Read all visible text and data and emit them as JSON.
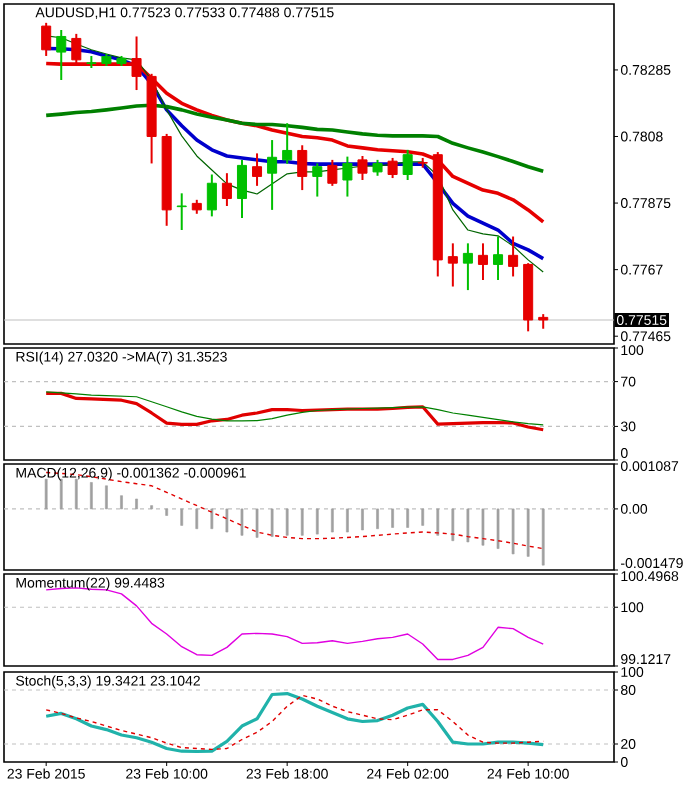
{
  "chart_data": [
    {
      "type": "candlestick",
      "title": "AUDUSD,H1 0.77523 0.77533 0.77488 0.77515",
      "categories": [
        null,
        null,
        null,
        null,
        null,
        null,
        null,
        null,
        null,
        null,
        null,
        null,
        null,
        null,
        null,
        null,
        null,
        null,
        null,
        null,
        null,
        null,
        null,
        null,
        null,
        null,
        null,
        null,
        null,
        null,
        null,
        null,
        null,
        null
      ],
      "tick_labels": "y",
      "ohlc": [
        [
          0.7842,
          0.7843,
          0.78328,
          0.78347
        ],
        [
          0.7834,
          0.78408,
          0.78254,
          0.78388
        ],
        [
          0.78382,
          0.78396,
          0.78297,
          0.78316
        ],
        [
          0.78305,
          0.78328,
          0.78291,
          0.78307
        ],
        [
          0.78305,
          0.78334,
          0.78297,
          0.78326
        ],
        [
          0.78305,
          0.78328,
          0.78297,
          0.7832
        ],
        [
          0.7832,
          0.78388,
          0.78223,
          0.78265
        ],
        [
          0.78265,
          0.78273,
          0.77997,
          0.7808
        ],
        [
          0.7808,
          0.78088,
          0.77805,
          0.77854
        ],
        [
          0.77864,
          0.77905,
          0.77792,
          0.77866
        ],
        [
          0.77874,
          0.77885,
          0.77842,
          0.77854
        ],
        [
          0.77854,
          0.77963,
          0.77834,
          0.77936
        ],
        [
          0.77936,
          0.77967,
          0.77866,
          0.77889
        ],
        [
          0.77889,
          0.78008,
          0.77829,
          0.77991
        ],
        [
          0.77987,
          0.78028,
          0.77928,
          0.77957
        ],
        [
          0.77967,
          0.78069,
          0.77854,
          0.78016
        ],
        [
          0.78008,
          0.78121,
          0.77996,
          0.78037
        ],
        [
          0.78037,
          0.78053,
          0.77915,
          0.77957
        ],
        [
          0.77957,
          0.77997,
          0.77895,
          0.77987
        ],
        [
          0.77991,
          0.78008,
          0.77928,
          0.77936
        ],
        [
          0.77946,
          0.78018,
          0.77895,
          0.77997
        ],
        [
          0.78008,
          0.7802,
          0.77946,
          0.77967
        ],
        [
          0.77971,
          0.78008,
          0.77959,
          0.77997
        ],
        [
          0.78004,
          0.78014,
          0.77952,
          0.77963
        ],
        [
          0.77963,
          0.78039,
          0.77946,
          0.78024
        ],
        [
          0.78,
          0.78014,
          0.77984,
          0.77998
        ],
        [
          0.78024,
          0.78032,
          0.77649,
          0.777
        ],
        [
          0.7771,
          0.77751,
          0.77618,
          0.7769
        ],
        [
          0.7769,
          0.77751,
          0.77607,
          0.7772
        ],
        [
          0.77714,
          0.77751,
          0.77638,
          0.77686
        ],
        [
          0.77686,
          0.77772,
          0.77638,
          0.77716
        ],
        [
          0.77714,
          0.77772,
          0.77649,
          0.7768
        ],
        [
          0.77686,
          0.7769,
          0.7748,
          0.77515
        ],
        [
          0.77523,
          0.77533,
          0.77488,
          0.77515
        ]
      ],
      "series": [
        {
          "type": "line",
          "color": "#0000cc",
          "values": [
            0.78351,
            0.7835,
            0.78347,
            0.78341,
            0.78328,
            0.78316,
            0.78297,
            0.78242,
            0.78162,
            0.78113,
            0.78069,
            0.78039,
            0.7802,
            0.78014,
            0.78008,
            0.78002,
            0.78002,
            0.77997,
            0.77995,
            0.77995,
            0.77995,
            0.77995,
            0.77995,
            0.77995,
            0.77995,
            0.77995,
            0.77936,
            0.77874,
            0.77835,
            0.77813,
            0.77792,
            0.77751,
            0.77731,
            0.77704
          ]
        },
        {
          "type": "line",
          "color": "#e60000",
          "values": [
            0.78305,
            0.78303,
            0.78303,
            0.78303,
            0.78303,
            0.78303,
            0.78303,
            0.78259,
            0.78213,
            0.78182,
            0.78162,
            0.78145,
            0.78131,
            0.78121,
            0.78113,
            0.781,
            0.7809,
            0.7808,
            0.78076,
            0.78069,
            0.78051,
            0.78045,
            0.78039,
            0.78036,
            0.78033,
            0.78026,
            0.78008,
            0.77957,
            0.77936,
            0.77915,
            0.77905,
            0.77885,
            0.77854,
            0.77817
          ]
        },
        {
          "type": "line",
          "color": "#008000",
          "values": [
            0.78145,
            0.78149,
            0.78154,
            0.78157,
            0.78162,
            0.78168,
            0.78174,
            0.78176,
            0.78172,
            0.78162,
            0.78149,
            0.78139,
            0.78131,
            0.78121,
            0.78117,
            0.78117,
            0.78113,
            0.78108,
            0.78102,
            0.781,
            0.78094,
            0.78088,
            0.78084,
            0.78082,
            0.78082,
            0.78082,
            0.7808,
            0.78059,
            0.78045,
            0.78032,
            0.78018,
            0.78003,
            0.77987,
            0.77973
          ]
        },
        {
          "type": "line",
          "color": "#006400",
          "values": [
            0.7839,
            0.78384,
            0.78365,
            0.78347,
            0.78334,
            0.78322,
            0.78316,
            0.78254,
            0.78162,
            0.78082,
            0.7802,
            0.77977,
            0.77934,
            0.77915,
            0.77903,
            0.77934,
            0.77965,
            0.77971,
            0.77971,
            0.77977,
            0.77983,
            0.77989,
            0.77989,
            0.77995,
            0.78002,
            0.78002,
            0.77959,
            0.77854,
            0.77792,
            0.7778,
            0.77774,
            0.77743,
            0.777,
            0.77663
          ]
        }
      ],
      "ylim": [
        0.77441,
        0.78488
      ],
      "yticks": [
        0.78285,
        0.7808,
        0.77875,
        0.7767,
        0.77465
      ],
      "ref_lines": [
        {
          "axis": "y",
          "value": 0.77515,
          "label": "0.77515",
          "color": "#c0c0c0"
        }
      ]
    },
    {
      "type": "line",
      "title": "RSI(14) 27.0320 ->MA(7) 31.3523",
      "categories": [
        null,
        null,
        null,
        null,
        null,
        null,
        null,
        null,
        null,
        null,
        null,
        null,
        null,
        null,
        null,
        null,
        null,
        null,
        null,
        null,
        null,
        null,
        null,
        null,
        null,
        null,
        null,
        null,
        null,
        null,
        null,
        null,
        null,
        null
      ],
      "tick_labels": "y",
      "series": [
        {
          "color": "#e00000",
          "values": [
            59.5,
            59.5,
            55,
            54.6,
            54,
            53.4,
            50.3,
            42,
            33,
            31.8,
            31.8,
            35,
            36.2,
            40,
            42,
            45,
            45,
            44.2,
            44.5,
            45,
            45.4,
            45.4,
            45.5,
            46,
            47,
            47.5,
            32,
            32.5,
            33,
            33.3,
            33.5,
            33.1,
            29.5,
            27.032
          ]
        },
        {
          "color": "#008000",
          "values": [
            60.8,
            60,
            59,
            58,
            57.5,
            57,
            56.5,
            52,
            47.5,
            43,
            39,
            36.5,
            35,
            34.9,
            35.2,
            37,
            40,
            42.5,
            44.2,
            45,
            45.5,
            46,
            46.4,
            46.8,
            47.2,
            47.5,
            45,
            42,
            40,
            38,
            36,
            34,
            32.5,
            31.3523
          ]
        }
      ],
      "ylim": [
        0,
        100
      ],
      "yticks": [
        0,
        30,
        70,
        100
      ],
      "ref_lines": [
        {
          "axis": "y",
          "value": 70,
          "color": "#c0c0c0",
          "line_style": "dashed"
        },
        {
          "axis": "y",
          "value": 30,
          "color": "#c0c0c0",
          "line_style": "dashed"
        }
      ]
    },
    {
      "type": "bar",
      "title": "MACD(12,26,9) -0.001362 -0.000961",
      "categories": [
        null,
        null,
        null,
        null,
        null,
        null,
        null,
        null,
        null,
        null,
        null,
        null,
        null,
        null,
        null,
        null,
        null,
        null,
        null,
        null,
        null,
        null,
        null,
        null,
        null,
        null,
        null,
        null,
        null,
        null,
        null,
        null,
        null,
        null
      ],
      "tick_labels": "y",
      "series": [
        {
          "type": "bar",
          "color": "#a0a0a0",
          "values": [
            0.00072,
            0.00072,
            0.00072,
            0.00064,
            0.00056,
            0.00032,
            0.00024,
            8e-05,
            -0.00016,
            -0.0004,
            -0.00048,
            -0.00048,
            -0.00056,
            -0.00064,
            -0.00069,
            -0.00067,
            -0.00064,
            -0.00064,
            -0.00061,
            -0.00056,
            -0.00056,
            -0.00051,
            -0.00048,
            -0.00045,
            -0.00045,
            -0.0004,
            -0.00064,
            -0.00077,
            -0.0008,
            -0.00088,
            -0.00096,
            -0.00109,
            -0.00115,
            -0.001362
          ]
        },
        {
          "type": "line",
          "color": "#e00000",
          "line_style": "dashed",
          "values": [
            0.00088,
            0.00086,
            0.00083,
            0.00078,
            0.00072,
            0.00066,
            0.00061,
            0.00056,
            0.0004,
            0.00024,
            8e-05,
            -8e-05,
            -0.00024,
            -0.0004,
            -0.00056,
            -0.00064,
            -0.00069,
            -0.00072,
            -0.00072,
            -0.00071,
            -0.00069,
            -0.00067,
            -0.00064,
            -0.00061,
            -0.00058,
            -0.00056,
            -0.00058,
            -0.00061,
            -0.00067,
            -0.00072,
            -0.00077,
            -0.00083,
            -0.0009,
            -0.000961
          ]
        }
      ],
      "ylim": [
        -0.001479,
        0.001087
      ],
      "yticks": [
        -0.001479,
        {
          "value": 0,
          "label": "0.00"
        },
        0.001087
      ],
      "ref_lines": [
        {
          "axis": "y",
          "value": 0,
          "color": "#c0c0c0",
          "line_style": "dashed"
        }
      ]
    },
    {
      "type": "line",
      "title": "Momentum(22) 99.4483",
      "categories": [
        null,
        null,
        null,
        null,
        null,
        null,
        null,
        null,
        null,
        null,
        null,
        null,
        null,
        null,
        null,
        null,
        null,
        null,
        null,
        null,
        null,
        null,
        null,
        null,
        null,
        null,
        null,
        null,
        null,
        null,
        null,
        null,
        null,
        null
      ],
      "tick_labels": "y",
      "series": [
        {
          "color": "#e000e0",
          "values": [
            100.26,
            100.28,
            100.29,
            100.27,
            100.26,
            100.2,
            100.02,
            99.76,
            99.6,
            99.41,
            99.29,
            99.28,
            99.4,
            99.6,
            99.61,
            99.6,
            99.56,
            99.46,
            99.47,
            99.5,
            99.46,
            99.49,
            99.53,
            99.55,
            99.6,
            99.45,
            99.22,
            99.22,
            99.28,
            99.4,
            99.7,
            99.68,
            99.55,
            99.4483
          ]
        }
      ],
      "ylim": [
        99.1217,
        100.4968
      ],
      "yticks": [
        99.1217,
        100,
        100.4968
      ],
      "ref_lines": [
        {
          "axis": "y",
          "value": 100,
          "color": "#c0c0c0",
          "line_style": "dashed"
        }
      ]
    },
    {
      "type": "line",
      "title": "Stoch(5,3,3) 19.3421 23.1042",
      "categories": [
        "23 Feb 2015",
        null,
        null,
        null,
        null,
        null,
        null,
        null,
        "23 Feb 10:00",
        null,
        null,
        null,
        null,
        null,
        null,
        null,
        "23 Feb 18:00",
        null,
        null,
        null,
        null,
        null,
        null,
        null,
        "24 Feb 02:00",
        null,
        null,
        null,
        null,
        null,
        null,
        null,
        "24 Feb 10:00",
        null
      ],
      "series": [
        {
          "color": "#20b2aa",
          "values": [
            50.8,
            54,
            48,
            40,
            36,
            30,
            27,
            22,
            15,
            12,
            11.7,
            12,
            23,
            40,
            48,
            75,
            76,
            70,
            62,
            55,
            48,
            45,
            46,
            52,
            60,
            64,
            45,
            22,
            20,
            20,
            22,
            22,
            21,
            19.3421
          ]
        },
        {
          "color": "#e00000",
          "line_style": "dashed",
          "values": [
            58,
            54,
            49,
            45,
            40,
            35,
            31,
            27,
            21,
            16,
            15,
            14,
            15,
            25,
            33,
            45,
            62,
            74,
            70,
            62,
            56,
            52,
            48,
            47,
            52,
            58,
            58,
            45,
            30,
            22,
            21,
            21,
            22,
            23.1042
          ]
        }
      ],
      "ylim": [
        0,
        100
      ],
      "yticks": [
        0,
        20,
        80,
        100
      ],
      "ref_lines": [
        {
          "axis": "y",
          "value": 80,
          "color": "#c0c0c0",
          "line_style": "dashed"
        },
        {
          "axis": "y",
          "value": 20,
          "color": "#c0c0c0",
          "line_style": "dashed"
        }
      ]
    }
  ]
}
